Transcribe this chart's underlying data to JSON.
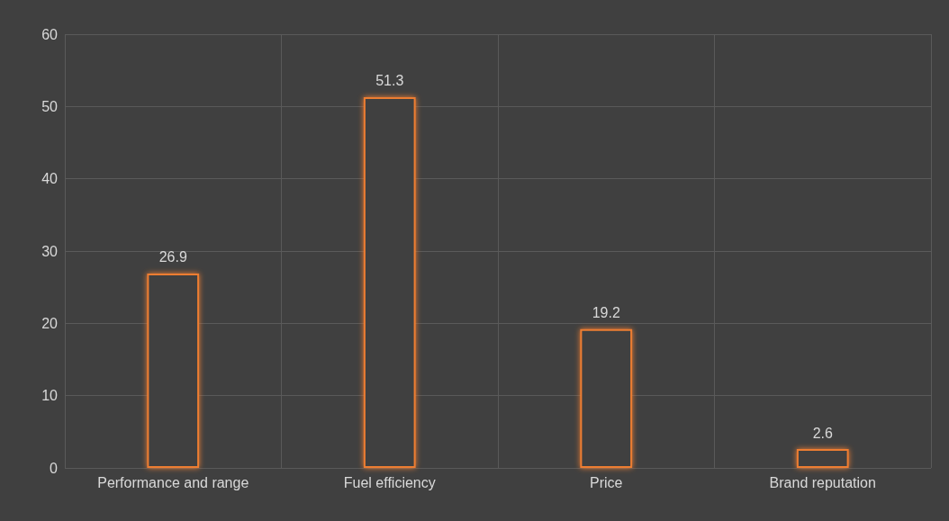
{
  "chart_data": {
    "type": "bar",
    "categories": [
      "Performance and range",
      "Fuel efficiency",
      "Price",
      "Brand reputation"
    ],
    "values": [
      26.9,
      51.3,
      19.2,
      2.6
    ],
    "color": "#ed7d31",
    "ylim": [
      0,
      60
    ],
    "yticks": [
      0,
      10,
      20,
      30,
      40,
      50,
      60
    ],
    "grid": true,
    "data_labels": true
  }
}
